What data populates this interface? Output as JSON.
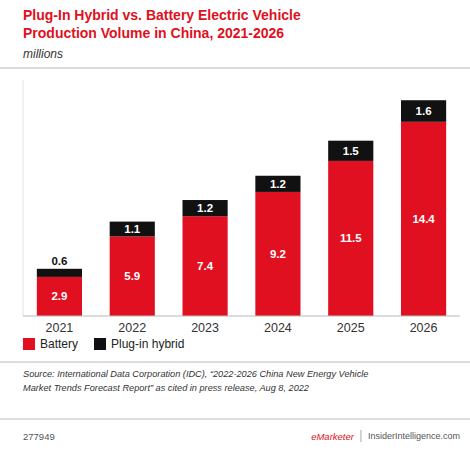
{
  "chart_data": {
    "type": "bar",
    "stacked": true,
    "title": "Plug-In Hybrid vs. Battery Electric Vehicle\nProduction Volume in China, 2021-2026",
    "subtitle": "millions",
    "categories": [
      "2021",
      "2022",
      "2023",
      "2024",
      "2025",
      "2026"
    ],
    "series": [
      {
        "name": "Battery",
        "color": "#e01020",
        "values": [
          2.9,
          5.9,
          7.4,
          9.2,
          11.5,
          14.4
        ]
      },
      {
        "name": "Plug-in hybrid",
        "color": "#111111",
        "values": [
          0.6,
          1.1,
          1.2,
          1.2,
          1.5,
          1.6
        ]
      }
    ],
    "ylim": [
      0,
      17.5
    ],
    "tick_labels": "x",
    "grid": false,
    "legend": "bottom",
    "data_labels": true,
    "annotations": [
      "Source: International Data Corporation (IDC), “2022-2026 China New Energy Vehicle\nMarket Trends Forecast Report” as cited in press release, Aug 8, 2022",
      "277949",
      "eMarketer",
      "InsiderIntelligence.com"
    ]
  }
}
